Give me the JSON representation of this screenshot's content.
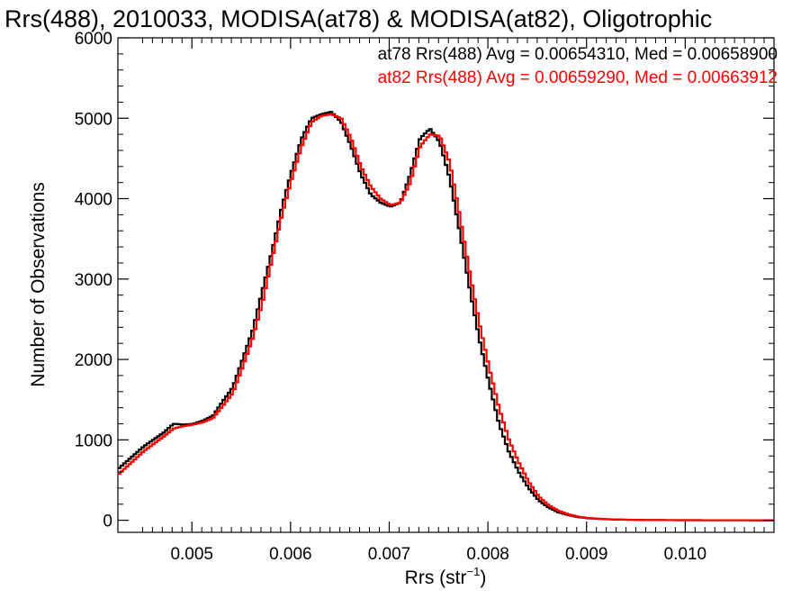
{
  "chart_data": {
    "type": "line",
    "step": true,
    "title": "Rrs(488), 2010033, MODISA(at78) & MODISA(at82), Oligotrophic",
    "xlabel_base": "Rrs (str",
    "xlabel_sup": "−1",
    "xlabel_close": ")",
    "ylabel": "Number of Observations",
    "xlim": [
      0.00425,
      0.0109
    ],
    "ylim": [
      -150,
      6000
    ],
    "x_ticks": [
      0.005,
      0.006,
      0.007,
      0.008,
      0.009,
      0.01
    ],
    "x_tick_labels": [
      "0.005",
      "0.006",
      "0.007",
      "0.008",
      "0.009",
      "0.010"
    ],
    "y_ticks": [
      0,
      1000,
      2000,
      3000,
      4000,
      5000,
      6000
    ],
    "y_tick_labels": [
      "0",
      "1000",
      "2000",
      "3000",
      "4000",
      "5000",
      "6000"
    ],
    "grid": false,
    "legend_position": "top-right",
    "series": [
      {
        "name": "at78 Rrs(488) Avg = 0.00654310, Med = 0.00658900",
        "color": "#000000",
        "points": [
          [
            0.00425,
            650
          ],
          [
            0.0045,
            920
          ],
          [
            0.0047,
            1090
          ],
          [
            0.0048,
            1200
          ],
          [
            0.0049,
            1190
          ],
          [
            0.005,
            1200
          ],
          [
            0.0051,
            1240
          ],
          [
            0.0052,
            1300
          ],
          [
            0.0053,
            1480
          ],
          [
            0.0054,
            1650
          ],
          [
            0.0055,
            2000
          ],
          [
            0.0056,
            2350
          ],
          [
            0.0057,
            2850
          ],
          [
            0.0058,
            3350
          ],
          [
            0.0059,
            3900
          ],
          [
            0.006,
            4350
          ],
          [
            0.0061,
            4750
          ],
          [
            0.0062,
            5000
          ],
          [
            0.0063,
            5050
          ],
          [
            0.0064,
            5080
          ],
          [
            0.0065,
            4950
          ],
          [
            0.0066,
            4650
          ],
          [
            0.0067,
            4300
          ],
          [
            0.0068,
            4050
          ],
          [
            0.0069,
            3950
          ],
          [
            0.007,
            3900
          ],
          [
            0.0071,
            3950
          ],
          [
            0.0072,
            4300
          ],
          [
            0.0073,
            4750
          ],
          [
            0.0074,
            4870
          ],
          [
            0.0075,
            4700
          ],
          [
            0.0076,
            4250
          ],
          [
            0.0077,
            3600
          ],
          [
            0.0078,
            2900
          ],
          [
            0.0079,
            2250
          ],
          [
            0.008,
            1700
          ],
          [
            0.0081,
            1200
          ],
          [
            0.0082,
            850
          ],
          [
            0.0083,
            600
          ],
          [
            0.0084,
            400
          ],
          [
            0.0085,
            250
          ],
          [
            0.0086,
            160
          ],
          [
            0.0087,
            100
          ],
          [
            0.0088,
            65
          ],
          [
            0.0089,
            40
          ],
          [
            0.009,
            25
          ],
          [
            0.0092,
            12
          ],
          [
            0.0094,
            6
          ],
          [
            0.0096,
            3
          ],
          [
            0.01,
            1
          ],
          [
            0.0109,
            0
          ]
        ]
      },
      {
        "name": "at82 Rrs(488) Avg = 0.00659290, Med = 0.00663912",
        "color": "#ff0000",
        "points": [
          [
            0.00425,
            580
          ],
          [
            0.0045,
            860
          ],
          [
            0.0047,
            1040
          ],
          [
            0.0048,
            1140
          ],
          [
            0.0049,
            1170
          ],
          [
            0.005,
            1190
          ],
          [
            0.0051,
            1220
          ],
          [
            0.0052,
            1270
          ],
          [
            0.0053,
            1420
          ],
          [
            0.0054,
            1580
          ],
          [
            0.0055,
            1900
          ],
          [
            0.0056,
            2250
          ],
          [
            0.0057,
            2700
          ],
          [
            0.0058,
            3250
          ],
          [
            0.0059,
            3800
          ],
          [
            0.006,
            4250
          ],
          [
            0.0061,
            4650
          ],
          [
            0.0062,
            4950
          ],
          [
            0.0063,
            5030
          ],
          [
            0.0064,
            5050
          ],
          [
            0.0065,
            5000
          ],
          [
            0.0066,
            4750
          ],
          [
            0.0067,
            4400
          ],
          [
            0.0068,
            4150
          ],
          [
            0.0069,
            4000
          ],
          [
            0.007,
            3920
          ],
          [
            0.0071,
            3950
          ],
          [
            0.0072,
            4200
          ],
          [
            0.0073,
            4650
          ],
          [
            0.0074,
            4800
          ],
          [
            0.0075,
            4780
          ],
          [
            0.0076,
            4450
          ],
          [
            0.0077,
            3800
          ],
          [
            0.0078,
            3100
          ],
          [
            0.0079,
            2450
          ],
          [
            0.008,
            1900
          ],
          [
            0.0081,
            1400
          ],
          [
            0.0082,
            1000
          ],
          [
            0.0083,
            720
          ],
          [
            0.0084,
            480
          ],
          [
            0.0085,
            300
          ],
          [
            0.0086,
            190
          ],
          [
            0.0087,
            120
          ],
          [
            0.0088,
            75
          ],
          [
            0.0089,
            45
          ],
          [
            0.009,
            28
          ],
          [
            0.0092,
            14
          ],
          [
            0.0094,
            7
          ],
          [
            0.0096,
            3
          ],
          [
            0.01,
            1
          ],
          [
            0.0109,
            0
          ]
        ]
      }
    ]
  }
}
